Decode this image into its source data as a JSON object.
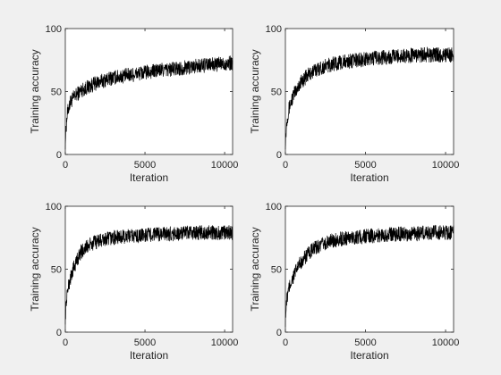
{
  "figure": {
    "background": "#f0f0f0",
    "axes_background": "#ffffff",
    "line_color": "#000000"
  },
  "chart_data": [
    {
      "type": "line",
      "xlabel": "Iteration",
      "ylabel": "Training accuracy",
      "xlim": [
        0,
        10500
      ],
      "ylim": [
        0,
        100
      ],
      "xticks": [
        0,
        5000,
        10000
      ],
      "xtick_labels": [
        "0",
        "5000",
        "10000"
      ],
      "yticks": [
        0,
        50,
        100
      ],
      "ytick_labels": [
        "0",
        "50",
        "100"
      ],
      "grid": false,
      "series": [
        {
          "x": [
            0,
            100,
            200,
            300,
            500,
            750,
            1000,
            1500,
            2000,
            3000,
            4000,
            5000,
            6000,
            7000,
            8000,
            9000,
            10000,
            10500
          ],
          "y": [
            10,
            30,
            37,
            41,
            45,
            48,
            51,
            54,
            57,
            61,
            63,
            65,
            67,
            68,
            70,
            71,
            72,
            73
          ],
          "noise": 6
        }
      ]
    },
    {
      "type": "line",
      "xlabel": "Iteration",
      "ylabel": "Training accuracy",
      "xlim": [
        0,
        10500
      ],
      "ylim": [
        0,
        100
      ],
      "xticks": [
        0,
        5000,
        10000
      ],
      "xtick_labels": [
        "0",
        "5000",
        "10000"
      ],
      "yticks": [
        0,
        50,
        100
      ],
      "ytick_labels": [
        "0",
        "50",
        "100"
      ],
      "grid": false,
      "series": [
        {
          "x": [
            0,
            100,
            200,
            300,
            500,
            750,
            1000,
            1500,
            2000,
            3000,
            4000,
            5000,
            6000,
            7000,
            8000,
            9000,
            10000,
            10500
          ],
          "y": [
            10,
            28,
            35,
            40,
            47,
            53,
            58,
            64,
            68,
            72,
            74,
            76,
            77,
            78,
            79,
            79,
            79,
            79
          ],
          "noise": 6
        }
      ]
    },
    {
      "type": "line",
      "xlabel": "Iteration",
      "ylabel": "Training accuracy",
      "xlim": [
        0,
        10500
      ],
      "ylim": [
        0,
        100
      ],
      "xticks": [
        0,
        5000,
        10000
      ],
      "xtick_labels": [
        "0",
        "5000",
        "10000"
      ],
      "yticks": [
        0,
        50,
        100
      ],
      "ytick_labels": [
        "0",
        "50",
        "100"
      ],
      "grid": false,
      "series": [
        {
          "x": [
            0,
            100,
            200,
            300,
            500,
            750,
            1000,
            1500,
            2000,
            3000,
            4000,
            5000,
            6000,
            7000,
            8000,
            9000,
            10000,
            10500
          ],
          "y": [
            12,
            30,
            36,
            42,
            50,
            58,
            64,
            69,
            72,
            75,
            76,
            77,
            78,
            78,
            79,
            79,
            79,
            79
          ],
          "noise": 6
        }
      ]
    },
    {
      "type": "line",
      "xlabel": "Iteration",
      "ylabel": "Training accuracy",
      "xlim": [
        0,
        10500
      ],
      "ylim": [
        0,
        100
      ],
      "xticks": [
        0,
        5000,
        10000
      ],
      "xtick_labels": [
        "0",
        "5000",
        "10000"
      ],
      "yticks": [
        0,
        50,
        100
      ],
      "ytick_labels": [
        "0",
        "50",
        "100"
      ],
      "grid": false,
      "series": [
        {
          "x": [
            0,
            100,
            200,
            300,
            500,
            750,
            1000,
            1500,
            2000,
            3000,
            4000,
            5000,
            6000,
            7000,
            8000,
            9000,
            10000,
            10500
          ],
          "y": [
            10,
            27,
            33,
            38,
            44,
            51,
            56,
            63,
            68,
            73,
            75,
            76,
            77,
            78,
            78,
            79,
            79,
            79
          ],
          "noise": 6
        }
      ]
    }
  ]
}
